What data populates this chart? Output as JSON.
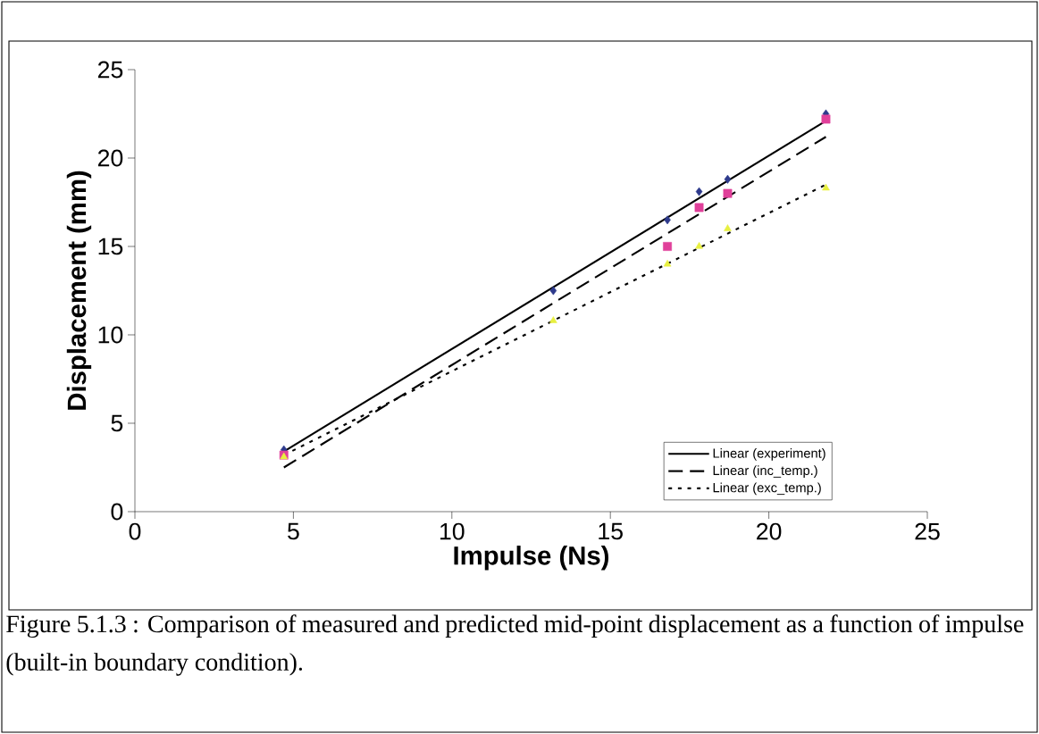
{
  "chart_data": {
    "type": "scatter",
    "xlabel": "Impulse (Ns)",
    "ylabel": "Displacement (mm)",
    "xlim": [
      0,
      25
    ],
    "ylim": [
      0,
      25
    ],
    "xticks": [
      0,
      5,
      10,
      15,
      20,
      25
    ],
    "yticks": [
      0,
      5,
      10,
      15,
      20,
      25
    ],
    "grid": false,
    "legend": "bottom right",
    "series": [
      {
        "type": "scatter",
        "marker": "diamond",
        "color": "#2e3a8c",
        "x": [
          4.7,
          13.2,
          16.8,
          17.8,
          18.7,
          21.8
        ],
        "values": [
          3.5,
          12.5,
          16.5,
          18.1,
          18.8,
          22.5
        ]
      },
      {
        "type": "scatter",
        "marker": "square",
        "color": "#e0409a",
        "x": [
          4.7,
          13.2,
          16.8,
          17.8,
          18.7,
          21.8
        ],
        "values": [
          3.2,
          null,
          15.0,
          17.2,
          18.0,
          22.2
        ]
      },
      {
        "type": "scatter",
        "marker": "triangle",
        "color": "#e8f040",
        "x": [
          4.7,
          13.2,
          16.8,
          17.8,
          18.7,
          21.8
        ],
        "values": [
          3.1,
          10.8,
          14.0,
          15.0,
          16.0,
          18.3
        ]
      },
      {
        "type": "line",
        "name": "Linear (experiment)",
        "color": "#000000",
        "line_style": "solid",
        "x": [
          4.7,
          21.8
        ],
        "values": [
          3.4,
          22.1
        ]
      },
      {
        "type": "line",
        "name": "Linear (inc_temp.)",
        "color": "#000000",
        "line_style": "dashed",
        "x": [
          4.7,
          21.8
        ],
        "values": [
          2.5,
          21.2
        ]
      },
      {
        "type": "line",
        "name": "Linear (exc_temp.)",
        "color": "#000000",
        "line_style": "dotted",
        "x": [
          4.7,
          21.8
        ],
        "values": [
          3.2,
          18.5
        ]
      }
    ],
    "annotations": [
      "Figure 5.1.3 : Comparison of measured and predicted mid-point displacement as a function of impulse (built-in boundary condition)."
    ]
  }
}
